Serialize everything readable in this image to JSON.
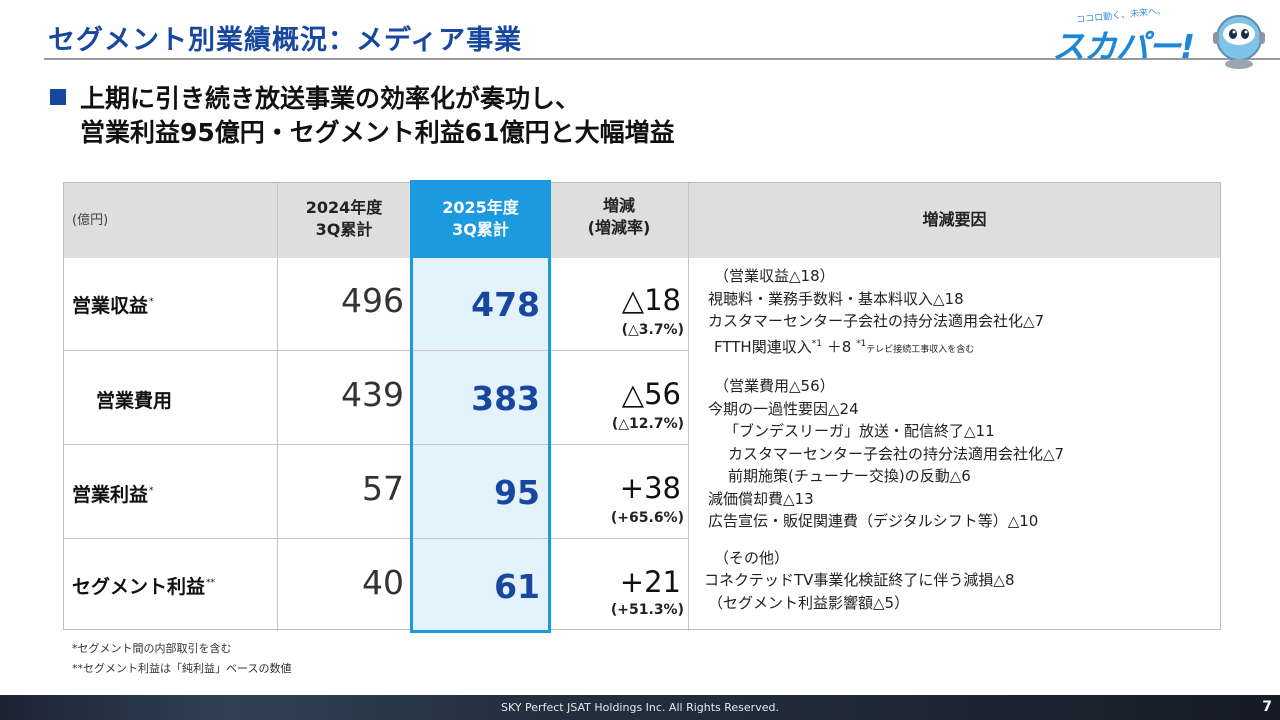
{
  "header": {
    "title": "セグメント別業績概況：メディア事業",
    "logo_tagline": "ココロ動く、未来へ。",
    "logo_word": "スカパー!"
  },
  "lead": {
    "line1": "上期に引き続き放送事業の効率化が奏功し、",
    "line2": "営業利益95億円・セグメント利益61億円と大幅増益"
  },
  "table": {
    "unit": "(億円)",
    "col_prev": [
      "2024年度",
      "3Q累計"
    ],
    "col_cur": [
      "2025年度",
      "3Q累計"
    ],
    "col_diff": [
      "増減",
      "(増減率)"
    ],
    "col_factors": "増減要因",
    "rows": [
      {
        "label": "営業収益",
        "mark": "*",
        "prev": "496",
        "cur": "478",
        "diff": "△18",
        "rate": "(△3.7%)"
      },
      {
        "label": "営業費用",
        "mark": "",
        "prev": "439",
        "cur": "383",
        "diff": "△56",
        "rate": "(△12.7%)"
      },
      {
        "label": "営業利益",
        "mark": "*",
        "prev": "57",
        "cur": "95",
        "diff": "+38",
        "rate": "(+65.6%)"
      },
      {
        "label": "セグメント利益",
        "mark": "**",
        "prev": "40",
        "cur": "61",
        "diff": "+21",
        "rate": "(+51.3%)"
      }
    ],
    "factors": {
      "revenue_head": "（営業収益△18）",
      "revenue_1": "視聴料・業務手数料・基本料収入△18",
      "revenue_2": "カスタマーセンター子会社の持分法適用会社化△7",
      "revenue_3": "FTTH関連収入",
      "revenue_3_mark": "*1",
      "revenue_3_value": "＋8",
      "revenue_3_note_mark": "*1",
      "revenue_3_note": "テレビ接続工事収入を含む",
      "cost_head": "（営業費用△56）",
      "cost_1": "今期の一過性要因△24",
      "cost_2": "「ブンデスリーガ」放送・配信終了△11",
      "cost_3": "カスタマーセンター子会社の持分法適用会社化△7",
      "cost_4": "前期施策(チューナー交換)の反動△6",
      "cost_5": "減価償却費△13",
      "cost_6": "広告宣伝・販促関連費（デジタルシフト等）△10",
      "other_head": "（その他）",
      "other_1": "コネクテッドTV事業化検証終了に伴う減損△8",
      "other_2": "（セグメント利益影響額△5）"
    }
  },
  "footnotes": {
    "note1": "*セグメント間の内部取引を含む",
    "note2": "**セグメント利益は「純利益」ベースの数値"
  },
  "footer": {
    "copyright": "SKY Perfect JSAT Holdings Inc. All Rights Reserved.",
    "page": "7"
  },
  "colors": {
    "title_blue": "#17479e",
    "highlight_blue": "#1c9ae0",
    "highlight_fill": "#e3f2fb",
    "header_gray": "#dedede"
  }
}
